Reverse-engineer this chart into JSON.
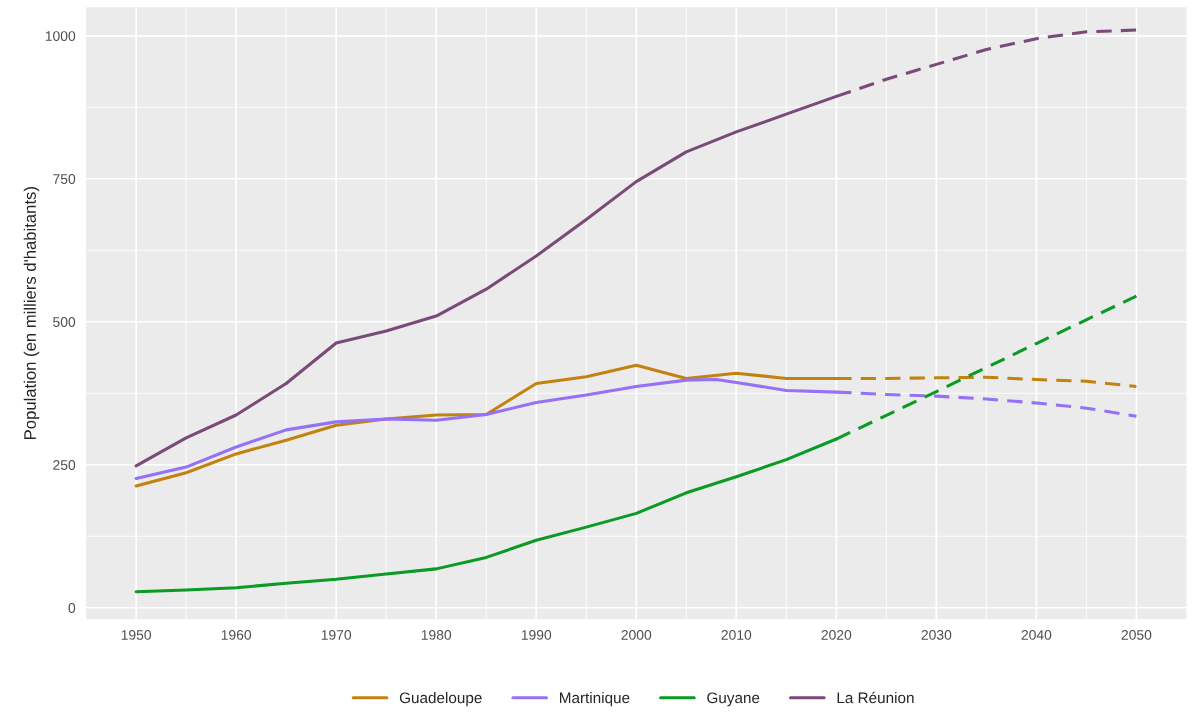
{
  "chart_data": {
    "type": "line",
    "ylabel": "Population (en milliers d'habitants)",
    "xlim": [
      1945,
      2055
    ],
    "ylim": [
      -20,
      1050
    ],
    "xticks": [
      1950,
      1960,
      1970,
      1980,
      1990,
      2000,
      2010,
      2020,
      2030,
      2040,
      2050
    ],
    "yticks": [
      0,
      250,
      500,
      750,
      1000
    ],
    "grid": true,
    "legend": "bottom",
    "series": [
      {
        "name": "Guadeloupe",
        "color": "#c2820f",
        "line_style": "solid",
        "x": [
          1950,
          1955,
          1960,
          1965,
          1970,
          1975,
          1980,
          1985,
          1990,
          1995,
          2000,
          2005,
          2010,
          2015,
          2020
        ],
        "values": [
          213,
          236,
          269,
          293,
          319,
          330,
          337,
          338,
          392,
          404,
          424,
          401,
          410,
          401,
          401
        ]
      },
      {
        "name": "Martinique",
        "color": "#9471f5",
        "line_style": "solid",
        "x": [
          1950,
          1955,
          1960,
          1965,
          1970,
          1975,
          1980,
          1985,
          1990,
          1995,
          2000,
          2005,
          2008,
          2010,
          2015,
          2020
        ],
        "values": [
          226,
          246,
          281,
          311,
          325,
          330,
          328,
          338,
          359,
          372,
          387,
          398,
          399,
          394,
          380,
          377
        ]
      },
      {
        "name": "Guyane",
        "color": "#0b9a23",
        "line_style": "solid",
        "x": [
          1950,
          1955,
          1960,
          1965,
          1970,
          1975,
          1980,
          1985,
          1990,
          1995,
          2000,
          2005,
          2010,
          2015,
          2020
        ],
        "values": [
          28,
          31,
          35,
          43,
          50,
          59,
          68,
          88,
          118,
          141,
          165,
          201,
          229,
          259,
          295
        ]
      },
      {
        "name": "La Réunion",
        "color": "#7a4a78",
        "line_style": "solid",
        "x": [
          1950,
          1955,
          1960,
          1965,
          1970,
          1975,
          1980,
          1985,
          1990,
          1995,
          2000,
          2005,
          2010,
          2015,
          2020
        ],
        "values": [
          248,
          297,
          337,
          392,
          463,
          484,
          510,
          557,
          615,
          679,
          745,
          797,
          832,
          863,
          894
        ]
      },
      {
        "color": "#c2820f",
        "line_style": "dashed",
        "x": [
          2020,
          2025,
          2030,
          2035,
          2040,
          2045,
          2050
        ],
        "values": [
          401,
          401,
          402,
          403,
          399,
          396,
          387
        ]
      },
      {
        "color": "#9471f5",
        "line_style": "dashed",
        "x": [
          2020,
          2025,
          2030,
          2035,
          2040,
          2045,
          2050
        ],
        "values": [
          377,
          373,
          370,
          365,
          358,
          349,
          335
        ]
      },
      {
        "color": "#0b9a23",
        "line_style": "dashed",
        "x": [
          2020,
          2030,
          2040,
          2050
        ],
        "values": [
          295,
          378,
          462,
          545
        ]
      },
      {
        "color": "#7a4a78",
        "line_style": "dashed",
        "x": [
          2020,
          2025,
          2030,
          2035,
          2040,
          2045,
          2050
        ],
        "values": [
          894,
          924,
          950,
          976,
          995,
          1007,
          1010
        ]
      }
    ]
  }
}
